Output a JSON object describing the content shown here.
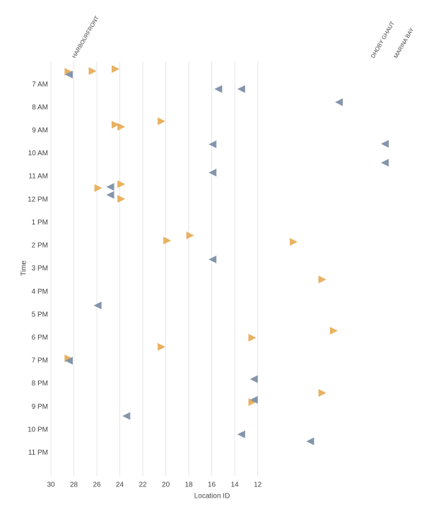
{
  "chart_data": {
    "type": "scatter",
    "x_label": "Location ID",
    "y_label": "Time",
    "xlim": [
      30,
      -1
    ],
    "xticks": [
      30,
      28,
      26,
      24,
      22,
      20,
      18,
      16,
      14,
      12
    ],
    "ylim": [
      6,
      24
    ],
    "y_inverted": true,
    "yticks": [
      {
        "value": 7,
        "label": "7 AM"
      },
      {
        "value": 8,
        "label": "8 AM"
      },
      {
        "value": 9,
        "label": "9 AM"
      },
      {
        "value": 10,
        "label": "10 AM"
      },
      {
        "value": 11,
        "label": "11 AM"
      },
      {
        "value": 12,
        "label": "12 PM"
      },
      {
        "value": 13,
        "label": "1 PM"
      },
      {
        "value": 14,
        "label": "2 PM"
      },
      {
        "value": 15,
        "label": "3 PM"
      },
      {
        "value": 16,
        "label": "4 PM"
      },
      {
        "value": 17,
        "label": "5 PM"
      },
      {
        "value": 18,
        "label": "6 PM"
      },
      {
        "value": 19,
        "label": "7 PM"
      },
      {
        "value": 20,
        "label": "8 PM"
      },
      {
        "value": 21,
        "label": "9 PM"
      },
      {
        "value": 22,
        "label": "10 PM"
      },
      {
        "value": 23,
        "label": "11 PM"
      }
    ],
    "grid": true,
    "annotations": [
      {
        "text": "HARBOURFRONT",
        "x": 28
      },
      {
        "text": "DHOBY GHAUT",
        "x": 2
      },
      {
        "text": "MARINA BAY",
        "x": 0
      }
    ],
    "series": [
      {
        "color": "#e8ad5a",
        "marker": "triangle-right",
        "x": [
          28.5,
          26.4,
          24.4,
          24.4,
          23.9,
          20.4,
          25.9,
          23.9,
          23.9,
          17.9,
          19.9,
          8.9,
          6.4,
          5.4,
          12.5,
          20.4,
          28.5,
          6.4,
          12.5
        ],
        "values": [
          6.45,
          6.42,
          6.33,
          8.75,
          8.84,
          8.6,
          11.5,
          11.33,
          11.97,
          13.56,
          13.78,
          13.84,
          15.47,
          17.7,
          18.0,
          18.4,
          18.9,
          20.4,
          20.8
        ]
      },
      {
        "color": "#7d8fa8",
        "marker": "triangle-left",
        "x": [
          28.4,
          15.4,
          13.4,
          4.9,
          15.9,
          0.9,
          0.9,
          15.9,
          24.8,
          24.8,
          15.9,
          25.9,
          28.4,
          12.3,
          12.3,
          23.4,
          13.4,
          7.4
        ],
        "values": [
          6.57,
          7.2,
          7.2,
          7.77,
          9.6,
          9.58,
          10.4,
          10.83,
          11.45,
          11.8,
          14.6,
          16.6,
          19.0,
          19.8,
          20.7,
          21.4,
          22.2,
          22.5
        ]
      }
    ]
  }
}
